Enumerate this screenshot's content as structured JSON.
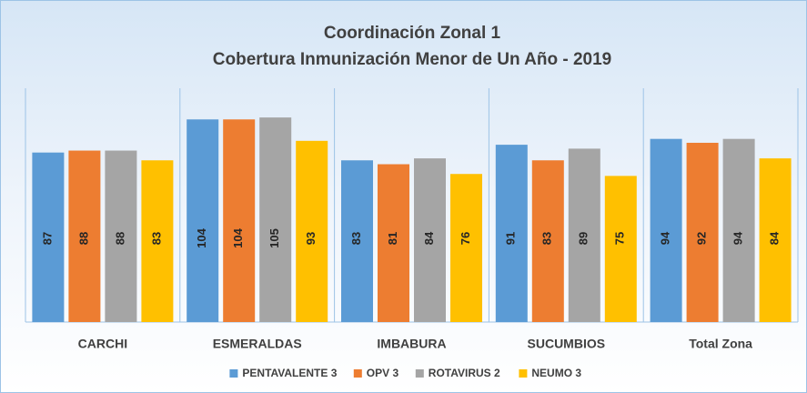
{
  "chart_data": {
    "type": "bar",
    "title": "Coordinación Zonal 1",
    "subtitle": "Cobertura Inmunización Menor de Un Año - 2019",
    "categories": [
      "CARCHI",
      "ESMERALDAS",
      "IMBABURA",
      "SUCUMBIOS",
      "Total Zona"
    ],
    "series": [
      {
        "name": "PENTAVALENTE 3",
        "color": "#5b9bd5",
        "values": [
          87,
          104,
          83,
          91,
          94
        ]
      },
      {
        "name": "OPV 3",
        "color": "#ed7d31",
        "values": [
          88,
          104,
          81,
          83,
          92
        ]
      },
      {
        "name": "ROTAVIRUS 2",
        "color": "#a5a5a5",
        "values": [
          88,
          105,
          84,
          89,
          94
        ]
      },
      {
        "name": "NEUMO 3",
        "color": "#ffc000",
        "values": [
          83,
          93,
          76,
          75,
          84
        ]
      }
    ],
    "ylim": [
      0,
      120
    ]
  }
}
